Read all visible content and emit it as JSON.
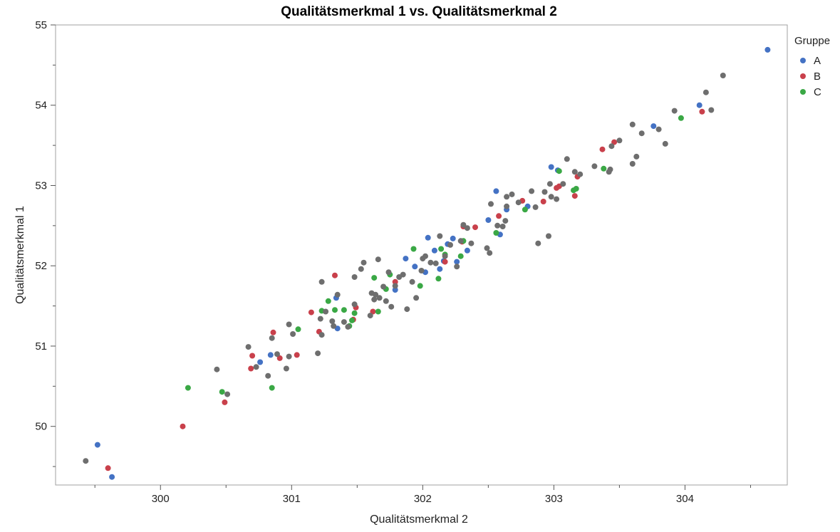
{
  "chart_data": {
    "type": "scatter",
    "title": "Qualitätsmerkmal 1 vs. Qualitätsmerkmal 2",
    "xlabel": "Qualitätsmerkmal 2",
    "ylabel": "Qualitätsmerkmal 1",
    "xlim": [
      299.2,
      304.78
    ],
    "ylim": [
      49.27,
      55.0
    ],
    "x_ticks": [
      "300",
      "301",
      "302",
      "303",
      "304"
    ],
    "y_ticks": [
      "50",
      "51",
      "52",
      "53",
      "54",
      "55"
    ],
    "grid": false,
    "legend": {
      "title": "Gruppe",
      "placement": "right",
      "entries": [
        {
          "label": "A",
          "color": "#4472c4"
        },
        {
          "label": "B",
          "color": "#c9404b"
        },
        {
          "label": "C",
          "color": "#3aa845"
        }
      ]
    },
    "unassigned_color": "#6e6e6e",
    "series": [
      {
        "name": "A",
        "color": "#4472c4",
        "points": [
          [
            299.52,
            49.77
          ],
          [
            299.63,
            49.37
          ],
          [
            300.76,
            50.8
          ],
          [
            300.84,
            50.89
          ],
          [
            301.34,
            51.6
          ],
          [
            301.35,
            51.22
          ],
          [
            301.79,
            51.7
          ],
          [
            301.87,
            52.09
          ],
          [
            301.94,
            51.99
          ],
          [
            302.02,
            51.92
          ],
          [
            302.04,
            52.35
          ],
          [
            302.09,
            52.19
          ],
          [
            302.13,
            51.96
          ],
          [
            302.16,
            52.06
          ],
          [
            302.19,
            52.27
          ],
          [
            302.23,
            52.34
          ],
          [
            302.26,
            52.05
          ],
          [
            302.34,
            52.19
          ],
          [
            302.5,
            52.57
          ],
          [
            302.56,
            52.93
          ],
          [
            302.59,
            52.39
          ],
          [
            302.64,
            52.7
          ],
          [
            302.8,
            52.74
          ],
          [
            302.98,
            53.23
          ],
          [
            303.03,
            53.19
          ],
          [
            303.76,
            53.74
          ],
          [
            304.11,
            54.0
          ],
          [
            304.63,
            54.69
          ]
        ]
      },
      {
        "name": "B",
        "color": "#c9404b",
        "points": [
          [
            299.6,
            49.48
          ],
          [
            300.17,
            50.0
          ],
          [
            300.49,
            50.3
          ],
          [
            300.69,
            50.72
          ],
          [
            300.7,
            50.88
          ],
          [
            300.86,
            51.17
          ],
          [
            300.91,
            50.85
          ],
          [
            301.04,
            50.89
          ],
          [
            301.15,
            51.42
          ],
          [
            301.21,
            51.18
          ],
          [
            301.33,
            51.88
          ],
          [
            301.47,
            51.33
          ],
          [
            301.49,
            51.48
          ],
          [
            301.62,
            51.43
          ],
          [
            301.79,
            51.8
          ],
          [
            302.17,
            52.05
          ],
          [
            302.3,
            52.3
          ],
          [
            302.31,
            52.49
          ],
          [
            302.4,
            52.48
          ],
          [
            302.58,
            52.62
          ],
          [
            302.76,
            52.81
          ],
          [
            302.92,
            52.8
          ],
          [
            303.02,
            52.97
          ],
          [
            303.04,
            52.99
          ],
          [
            303.16,
            52.87
          ],
          [
            303.18,
            53.11
          ],
          [
            303.37,
            53.45
          ],
          [
            303.46,
            53.54
          ],
          [
            304.13,
            53.92
          ]
        ]
      },
      {
        "name": "C",
        "color": "#3aa845",
        "points": [
          [
            300.21,
            50.48
          ],
          [
            300.47,
            50.43
          ],
          [
            300.85,
            50.48
          ],
          [
            301.05,
            51.21
          ],
          [
            301.23,
            51.44
          ],
          [
            301.28,
            51.56
          ],
          [
            301.33,
            51.45
          ],
          [
            301.4,
            51.45
          ],
          [
            301.44,
            51.25
          ],
          [
            301.46,
            51.32
          ],
          [
            301.48,
            51.41
          ],
          [
            301.63,
            51.85
          ],
          [
            301.66,
            51.43
          ],
          [
            301.72,
            51.71
          ],
          [
            301.75,
            51.89
          ],
          [
            301.93,
            52.21
          ],
          [
            301.98,
            51.75
          ],
          [
            302.12,
            51.84
          ],
          [
            302.14,
            52.21
          ],
          [
            302.17,
            52.14
          ],
          [
            302.29,
            52.12
          ],
          [
            302.31,
            52.31
          ],
          [
            302.56,
            52.41
          ],
          [
            302.78,
            52.7
          ],
          [
            303.04,
            53.18
          ],
          [
            303.15,
            52.94
          ],
          [
            303.17,
            52.96
          ],
          [
            303.38,
            53.21
          ],
          [
            303.97,
            53.84
          ]
        ]
      },
      {
        "name": "",
        "color": "#6e6e6e",
        "points": [
          [
            299.43,
            49.57
          ],
          [
            300.43,
            50.71
          ],
          [
            300.51,
            50.4
          ],
          [
            300.67,
            50.99
          ],
          [
            300.73,
            50.74
          ],
          [
            300.82,
            50.63
          ],
          [
            300.85,
            51.1
          ],
          [
            300.89,
            50.9
          ],
          [
            300.96,
            50.72
          ],
          [
            300.98,
            50.87
          ],
          [
            300.98,
            51.27
          ],
          [
            301.01,
            51.15
          ],
          [
            301.2,
            50.91
          ],
          [
            301.22,
            51.34
          ],
          [
            301.23,
            51.14
          ],
          [
            301.23,
            51.8
          ],
          [
            301.26,
            51.43
          ],
          [
            301.31,
            51.31
          ],
          [
            301.32,
            51.25
          ],
          [
            301.35,
            51.64
          ],
          [
            301.4,
            51.3
          ],
          [
            301.43,
            51.24
          ],
          [
            301.48,
            51.52
          ],
          [
            301.48,
            51.86
          ],
          [
            301.53,
            51.96
          ],
          [
            301.55,
            52.04
          ],
          [
            301.6,
            51.38
          ],
          [
            301.61,
            51.66
          ],
          [
            301.63,
            51.58
          ],
          [
            301.64,
            51.64
          ],
          [
            301.66,
            52.08
          ],
          [
            301.67,
            51.6
          ],
          [
            301.7,
            51.74
          ],
          [
            301.72,
            51.56
          ],
          [
            301.74,
            51.92
          ],
          [
            301.76,
            51.49
          ],
          [
            301.79,
            51.75
          ],
          [
            301.82,
            51.86
          ],
          [
            301.85,
            51.89
          ],
          [
            301.88,
            51.46
          ],
          [
            301.92,
            51.8
          ],
          [
            301.95,
            51.6
          ],
          [
            301.99,
            51.94
          ],
          [
            302.0,
            52.09
          ],
          [
            302.02,
            52.12
          ],
          [
            302.06,
            52.04
          ],
          [
            302.1,
            52.03
          ],
          [
            302.13,
            52.37
          ],
          [
            302.17,
            52.12
          ],
          [
            302.21,
            52.26
          ],
          [
            302.26,
            51.99
          ],
          [
            302.29,
            52.31
          ],
          [
            302.31,
            52.51
          ],
          [
            302.34,
            52.47
          ],
          [
            302.37,
            52.28
          ],
          [
            302.49,
            52.22
          ],
          [
            302.51,
            52.16
          ],
          [
            302.52,
            52.77
          ],
          [
            302.57,
            52.5
          ],
          [
            302.61,
            52.49
          ],
          [
            302.63,
            52.56
          ],
          [
            302.64,
            52.74
          ],
          [
            302.64,
            52.86
          ],
          [
            302.68,
            52.89
          ],
          [
            302.73,
            52.79
          ],
          [
            302.83,
            52.93
          ],
          [
            302.86,
            52.73
          ],
          [
            302.88,
            52.28
          ],
          [
            302.93,
            52.92
          ],
          [
            302.96,
            52.37
          ],
          [
            302.97,
            53.02
          ],
          [
            302.98,
            52.86
          ],
          [
            303.02,
            52.83
          ],
          [
            303.07,
            53.02
          ],
          [
            303.1,
            53.33
          ],
          [
            303.16,
            53.17
          ],
          [
            303.2,
            53.14
          ],
          [
            303.31,
            53.24
          ],
          [
            303.42,
            53.17
          ],
          [
            303.43,
            53.2
          ],
          [
            303.44,
            53.49
          ],
          [
            303.5,
            53.56
          ],
          [
            303.6,
            53.27
          ],
          [
            303.6,
            53.76
          ],
          [
            303.63,
            53.36
          ],
          [
            303.67,
            53.65
          ],
          [
            303.8,
            53.7
          ],
          [
            303.85,
            53.52
          ],
          [
            303.92,
            53.93
          ],
          [
            304.16,
            54.16
          ],
          [
            304.2,
            53.94
          ],
          [
            304.29,
            54.37
          ]
        ]
      }
    ]
  }
}
